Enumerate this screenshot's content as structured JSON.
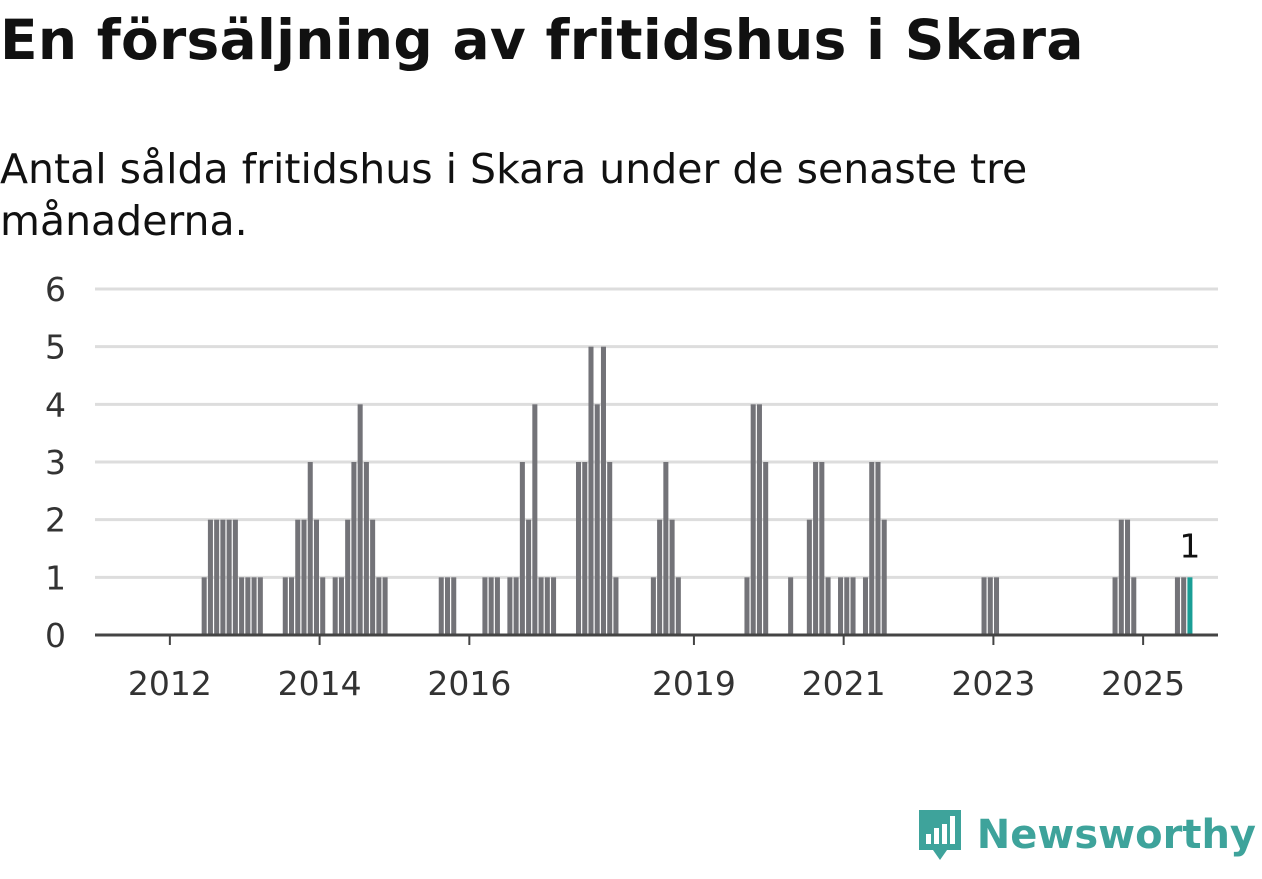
{
  "title": "En försäljning av fritidshus i Skara",
  "subtitle": "Antal sålda fritidshus i Skara under de senaste tre månaderna.",
  "brand": {
    "name": "Newsworthy",
    "icon": "newsworthy-logo-icon",
    "color": "#3ea39b"
  },
  "colors": {
    "bar": "#737378",
    "highlight": "#1a9e96",
    "grid": "#dddddd",
    "axis": "#444444"
  },
  "chart_data": {
    "type": "bar",
    "title": "En försäljning av fritidshus i Skara",
    "subtitle": "Antal sålda fritidshus i Skara under de senaste tre månaderna.",
    "xlabel": "",
    "ylabel": "",
    "ylim": [
      0,
      6
    ],
    "yticks": [
      0,
      1,
      2,
      3,
      4,
      5,
      6
    ],
    "xlim": [
      "2011-01",
      "2025-12"
    ],
    "xticks": [
      {
        "label": "2012",
        "date": "2012-01"
      },
      {
        "label": "2014",
        "date": "2014-01"
      },
      {
        "label": "2016",
        "date": "2016-01"
      },
      {
        "label": "2019",
        "date": "2019-01"
      },
      {
        "label": "2021",
        "date": "2021-01"
      },
      {
        "label": "2023",
        "date": "2023-01"
      },
      {
        "label": "2025",
        "date": "2025-01"
      }
    ],
    "grid": true,
    "series": [
      {
        "x": [
          "2012-06",
          "2012-07",
          "2012-08",
          "2012-09",
          "2012-10",
          "2012-11",
          "2012-12",
          "2013-01",
          "2013-02",
          "2013-03",
          "2013-07",
          "2013-08",
          "2013-09",
          "2013-10",
          "2013-11",
          "2013-12",
          "2014-01",
          "2014-03",
          "2014-04",
          "2014-05",
          "2014-06",
          "2014-07",
          "2014-08",
          "2014-09",
          "2014-10",
          "2014-11",
          "2015-08",
          "2015-09",
          "2015-10",
          "2016-03",
          "2016-04",
          "2016-05",
          "2016-07",
          "2016-08",
          "2016-09",
          "2016-10",
          "2016-11",
          "2016-12",
          "2017-01",
          "2017-02",
          "2017-06",
          "2017-07",
          "2017-08",
          "2017-09",
          "2017-10",
          "2017-11",
          "2017-12",
          "2018-06",
          "2018-07",
          "2018-08",
          "2018-09",
          "2018-10",
          "2019-09",
          "2019-10",
          "2019-11",
          "2019-12",
          "2020-04",
          "2020-07",
          "2020-08",
          "2020-09",
          "2020-10",
          "2020-12",
          "2021-01",
          "2021-02",
          "2021-04",
          "2021-05",
          "2021-06",
          "2021-07",
          "2022-11",
          "2022-12",
          "2023-01",
          "2024-08",
          "2024-09",
          "2024-10",
          "2024-11",
          "2025-06",
          "2025-07",
          "2025-08"
        ],
        "values": [
          1,
          2,
          2,
          2,
          2,
          2,
          1,
          1,
          1,
          1,
          1,
          1,
          2,
          2,
          3,
          2,
          1,
          1,
          1,
          2,
          3,
          4,
          3,
          2,
          1,
          1,
          1,
          1,
          1,
          1,
          1,
          1,
          1,
          1,
          3,
          2,
          4,
          1,
          1,
          1,
          3,
          3,
          5,
          4,
          5,
          3,
          1,
          1,
          2,
          3,
          2,
          1,
          1,
          4,
          4,
          3,
          1,
          2,
          3,
          3,
          1,
          1,
          1,
          1,
          1,
          3,
          3,
          2,
          1,
          1,
          1,
          1,
          2,
          2,
          1,
          1,
          1,
          1
        ]
      }
    ],
    "highlight": {
      "date": "2025-08",
      "value": 1,
      "label": "1"
    }
  }
}
